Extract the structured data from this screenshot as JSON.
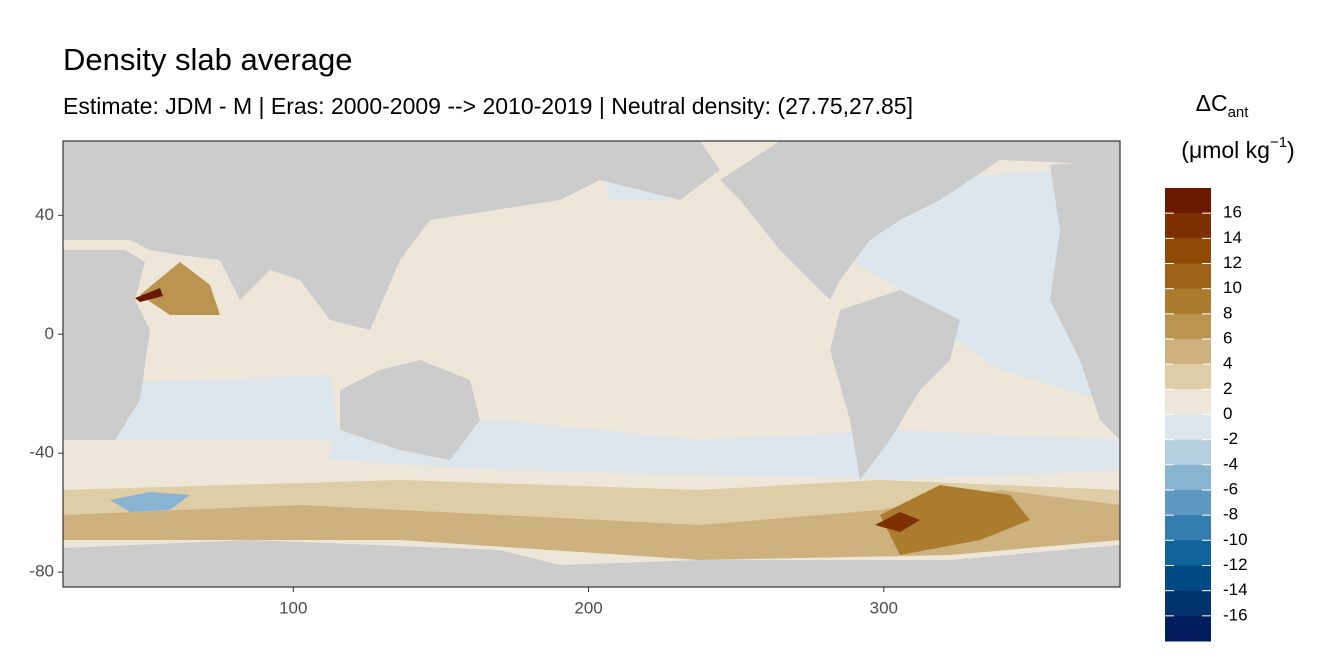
{
  "chart_data": {
    "type": "map",
    "title": "Density slab average",
    "subtitle": "Estimate: JDM - M | Eras: 2000-2009 --> 2010-2019 | Neutral density: (27.75,27.85]",
    "xlim": [
      22,
      380
    ],
    "ylim": [
      -85,
      65
    ],
    "xticks": [
      100,
      200,
      300
    ],
    "yticks": [
      40,
      0,
      -40,
      -80
    ],
    "legend": {
      "title": "ΔC",
      "title_sub": "ant",
      "units": "(μmol kg",
      "units_sup": "−1",
      "units_end": ")",
      "lim": [
        -18,
        18
      ],
      "breaks": [
        16,
        14,
        12,
        10,
        8,
        6,
        4,
        2,
        0,
        -2,
        -4,
        -6,
        -8,
        -10,
        -12,
        -14,
        -16
      ],
      "colors": [
        "#6b1a00",
        "#7f3000",
        "#8f4a06",
        "#9c6316",
        "#ab7c2d",
        "#bb9550",
        "#cdb17e",
        "#dfcda8",
        "#ede6d9",
        "#dce6ec",
        "#b5cfe0",
        "#88b4d1",
        "#5d98c0",
        "#347daf",
        "#10629a",
        "#034a85",
        "#01346f",
        "#021c5e"
      ]
    }
  }
}
